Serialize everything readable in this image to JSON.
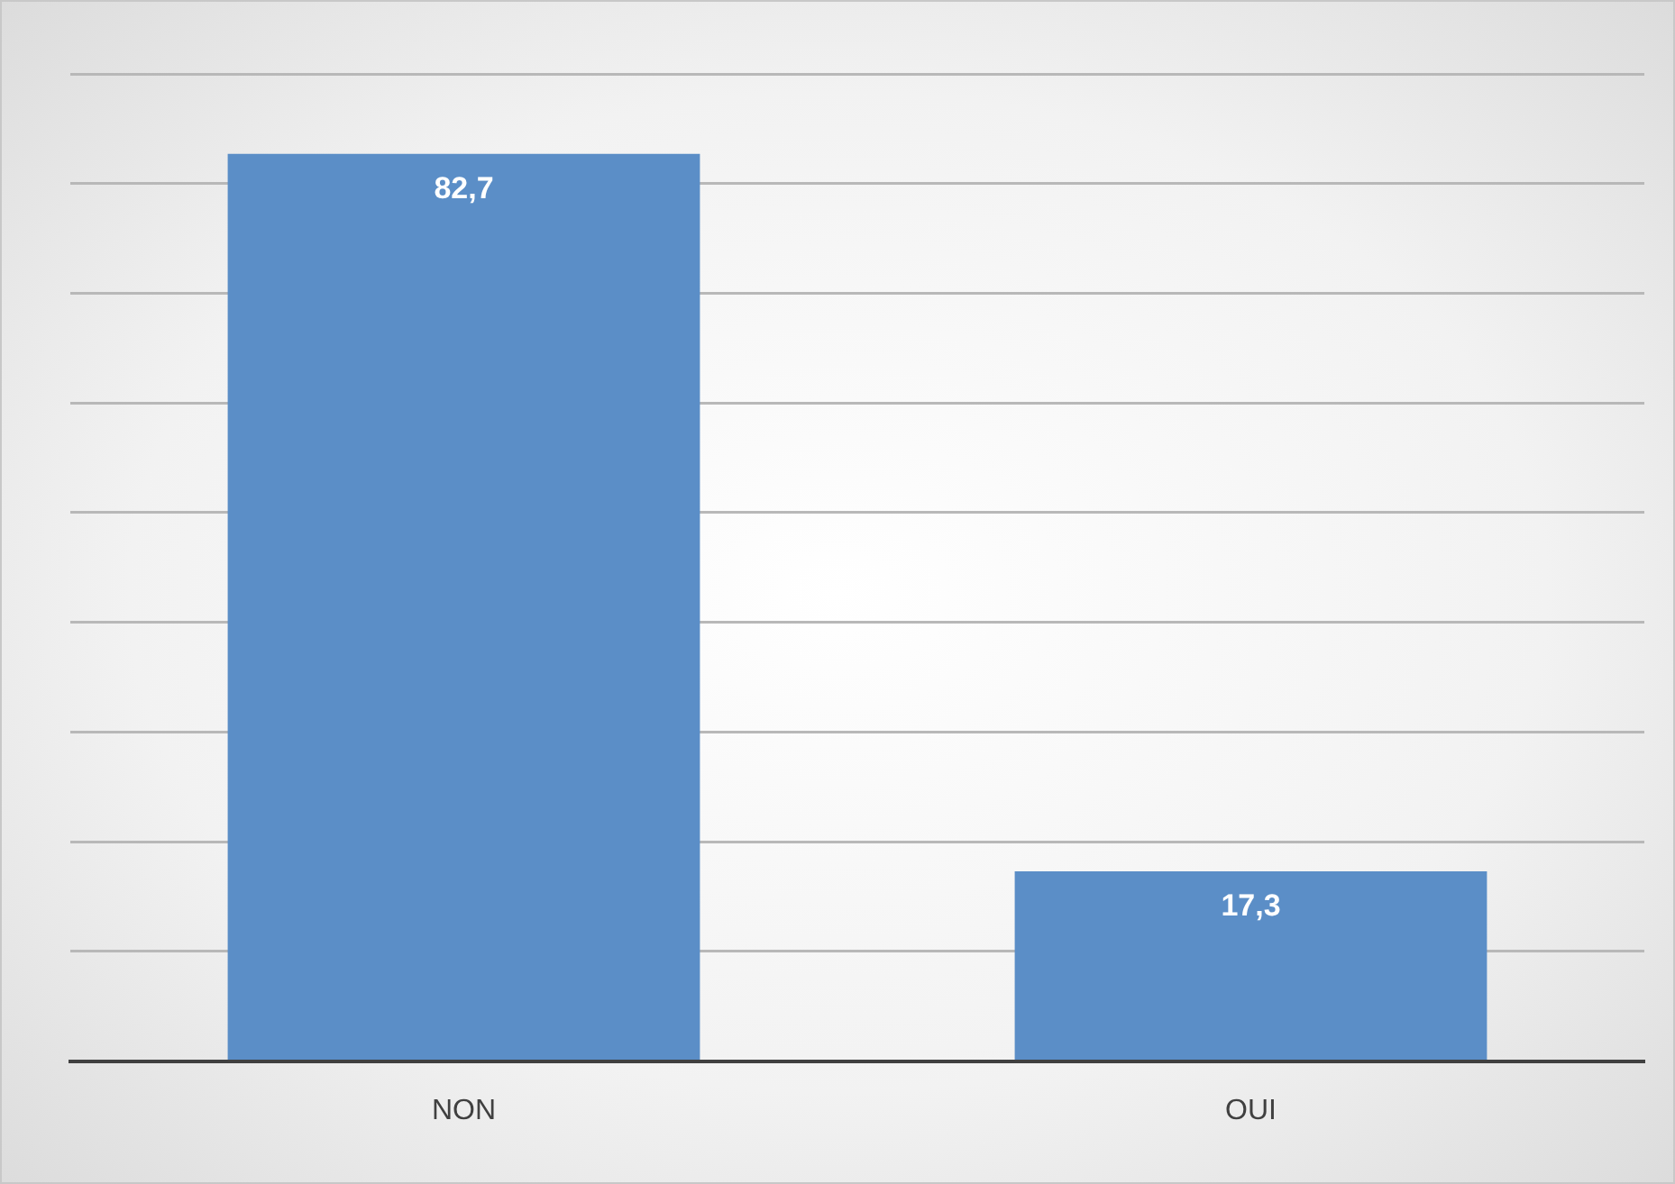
{
  "chart_data": {
    "type": "bar",
    "categories": [
      "NON",
      "OUI"
    ],
    "series": [
      {
        "color": "#5b8ec7",
        "values": [
          82.7,
          17.3
        ],
        "value_labels": [
          "82,7",
          "17,3"
        ]
      }
    ],
    "ylim": [
      0,
      90
    ],
    "yticks": [
      {
        "value": 0,
        "label": null
      },
      {
        "value": 10,
        "label": null
      },
      {
        "value": 20,
        "label": null
      },
      {
        "value": 30,
        "label": null
      },
      {
        "value": 40,
        "label": null
      },
      {
        "value": 50,
        "label": null
      },
      {
        "value": 60,
        "label": null
      },
      {
        "value": 70,
        "label": null
      },
      {
        "value": 80,
        "label": null
      },
      {
        "value": 90,
        "label": null
      }
    ],
    "grid": "y",
    "tick_labels": "x",
    "legend": false
  }
}
